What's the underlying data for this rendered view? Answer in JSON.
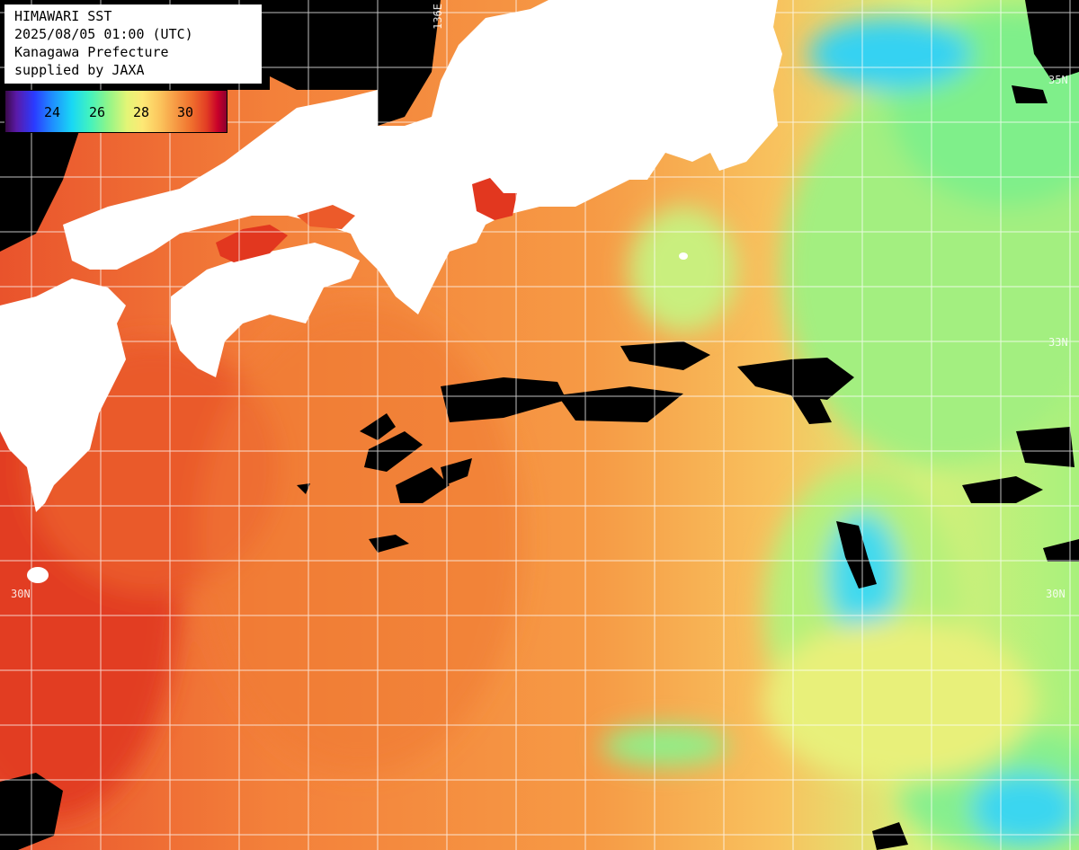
{
  "info": {
    "title": "HIMAWARI SST",
    "datetime": "2025/08/05 01:00 (UTC)",
    "region": "Kanagawa Prefecture",
    "credit": "supplied by JAXA"
  },
  "legend": {
    "ticks": [
      "24",
      "26",
      "28",
      "30"
    ]
  },
  "grid_labels": {
    "lat_35": "35N",
    "lat_33": "33N",
    "lat_33_left": "33",
    "lat_30_left": "30N",
    "lat_30_right": "30N",
    "lon_136": "136E"
  },
  "colors": {
    "land": "#ffffff",
    "cloud": "#000000",
    "warm_sea": "#f58a3a",
    "hot_sea": "#e3402a",
    "mid_sea": "#f7b95a",
    "cool_sea": "#a6f07a",
    "cold_sea": "#2fd8f0",
    "grid": "#ffffff"
  }
}
